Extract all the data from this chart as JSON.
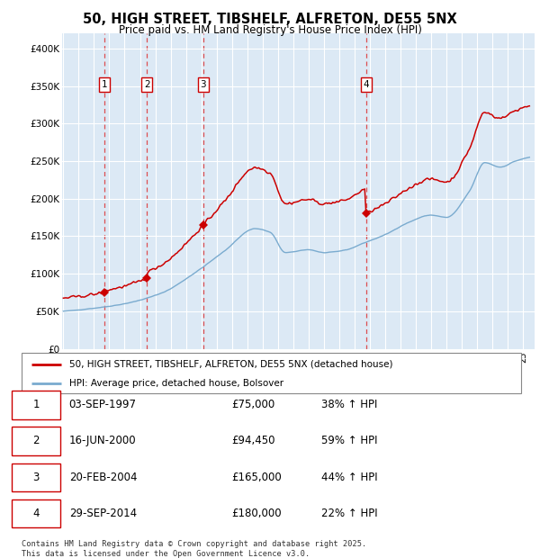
{
  "title": "50, HIGH STREET, TIBSHELF, ALFRETON, DE55 5NX",
  "subtitle": "Price paid vs. HM Land Registry's House Price Index (HPI)",
  "bg_color": "#dce9f5",
  "red_line_color": "#cc0000",
  "blue_line_color": "#7aabcf",
  "dashed_line_color": "#cc0000",
  "transaction_dates": [
    1997.67,
    2000.46,
    2004.13,
    2014.75
  ],
  "transaction_prices": [
    75000,
    94450,
    165000,
    180000
  ],
  "transaction_labels": [
    "1",
    "2",
    "3",
    "4"
  ],
  "legend_entries": [
    "50, HIGH STREET, TIBSHELF, ALFRETON, DE55 5NX (detached house)",
    "HPI: Average price, detached house, Bolsover"
  ],
  "table_rows": [
    [
      "1",
      "03-SEP-1997",
      "£75,000",
      "38% ↑ HPI"
    ],
    [
      "2",
      "16-JUN-2000",
      "£94,450",
      "59% ↑ HPI"
    ],
    [
      "3",
      "20-FEB-2004",
      "£165,000",
      "44% ↑ HPI"
    ],
    [
      "4",
      "29-SEP-2014",
      "£180,000",
      "22% ↑ HPI"
    ]
  ],
  "footer": "Contains HM Land Registry data © Crown copyright and database right 2025.\nThis data is licensed under the Open Government Licence v3.0.",
  "ylim": [
    0,
    420000
  ],
  "yticks": [
    0,
    50000,
    100000,
    150000,
    200000,
    250000,
    300000,
    350000,
    400000
  ],
  "ytick_labels": [
    "£0",
    "£50K",
    "£100K",
    "£150K",
    "£200K",
    "£250K",
    "£300K",
    "£350K",
    "£400K"
  ],
  "xstart": 1995.0,
  "xend": 2025.5
}
